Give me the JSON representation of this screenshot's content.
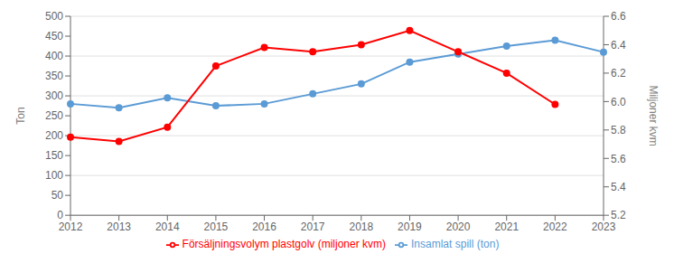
{
  "chart_data": {
    "type": "line",
    "categories": [
      "2012",
      "2013",
      "2014",
      "2015",
      "2016",
      "2017",
      "2018",
      "2019",
      "2020",
      "2021",
      "2022",
      "2023"
    ],
    "series": [
      {
        "name": "Insamlat spill (ton)",
        "color": "#5B9BD5",
        "marker": "circle",
        "values": [
          280,
          270,
          295,
          275,
          280,
          305,
          330,
          385,
          405,
          425,
          440,
          410
        ]
      },
      {
        "name": "Försäljningsvolym plastgolv (miljoner kvm)",
        "color": "#FF0000",
        "marker": "circle",
        "axis": "y2",
        "values": [
          5.75,
          5.72,
          5.82,
          6.25,
          6.38,
          6.35,
          6.4,
          6.5,
          6.35,
          6.2,
          5.98,
          null
        ]
      }
    ],
    "ylabel": "Ton",
    "y2label": "Miljoner kvm",
    "ylim": [
      0,
      500
    ],
    "yticks": [
      0,
      50,
      100,
      150,
      200,
      250,
      300,
      350,
      400,
      450,
      500
    ],
    "y2lim": [
      5.2,
      6.6
    ],
    "y2ticks": [
      5.2,
      5.4,
      5.6,
      5.8,
      {
        "value": 6,
        "label": "6.0"
      },
      6.2,
      6.4,
      6.6
    ],
    "grid": true,
    "legend": "bottom"
  }
}
